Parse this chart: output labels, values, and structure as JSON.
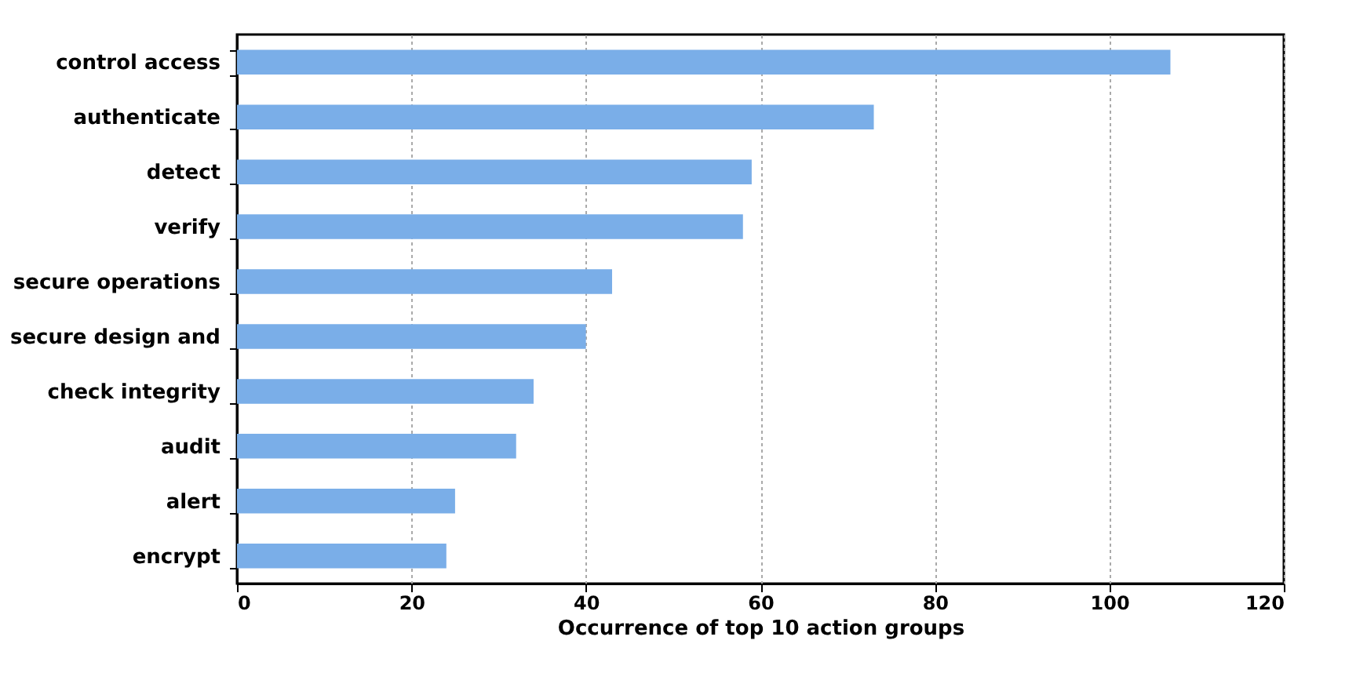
{
  "chart_data": {
    "type": "bar",
    "orientation": "horizontal",
    "xlabel": "Occurrence of top 10 action groups",
    "categories": [
      "control access",
      "authenticate",
      "detect",
      "verify",
      "secure operations",
      "secure design and",
      "check integrity",
      "audit",
      "alert",
      "encrypt"
    ],
    "values": [
      107,
      73,
      59,
      58,
      43,
      40,
      34,
      32,
      25,
      24
    ],
    "color": "#7aaee8",
    "xlim": [
      0,
      120
    ],
    "xticks": [
      0,
      20,
      40,
      60,
      80,
      100,
      120
    ],
    "grid": "x"
  }
}
